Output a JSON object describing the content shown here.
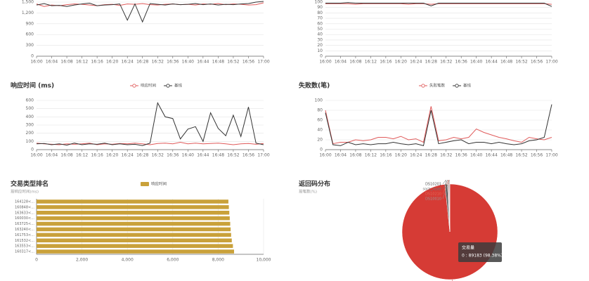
{
  "chart_data": [
    {
      "type": "line",
      "categories": [
        "16:00",
        null,
        "16:04",
        null,
        "16:08",
        null,
        "16:12",
        null,
        "16:16",
        null,
        "16:20",
        null,
        "16:24",
        null,
        "16:28",
        null,
        "16:32",
        null,
        "16:36",
        null,
        "16:40",
        null,
        "16:44",
        null,
        "16:48",
        null,
        "16:52",
        null,
        "16:56",
        null,
        "17:00"
      ],
      "ylim": [
        0,
        1500
      ],
      "yticks": [
        0,
        300,
        600,
        900,
        {
          "value": 1200,
          "label": "1,200"
        },
        {
          "value": 1500,
          "label": "1,500"
        }
      ],
      "grid": true,
      "series": [
        {
          "color": "#e05a5a",
          "values": [
            1450,
            1380,
            1420,
            1400,
            1430,
            1450,
            1440,
            1420,
            1400,
            1430,
            1440,
            1410,
            1450,
            1440,
            1460,
            1430,
            1420,
            1440,
            1450,
            1430,
            1440,
            1420,
            1450,
            1440,
            1460,
            1430,
            1450,
            1440,
            1420,
            1430,
            1480
          ]
        },
        {
          "color": "#333333",
          "values": [
            1420,
            1460,
            1400,
            1410,
            1380,
            1420,
            1450,
            1470,
            1400,
            1420,
            1430,
            1450,
            1000,
            1450,
            950,
            1460,
            1440,
            1420,
            1450,
            1430,
            1440,
            1460,
            1430,
            1450,
            1420,
            1440,
            1430,
            1450,
            1460,
            1500,
            1520
          ]
        }
      ]
    },
    {
      "type": "line",
      "categories": [
        "16:00",
        null,
        "16:04",
        null,
        "16:08",
        null,
        "16:12",
        null,
        "16:16",
        null,
        "16:20",
        null,
        "16:24",
        null,
        "16:28",
        null,
        "16:32",
        null,
        "16:36",
        null,
        "16:40",
        null,
        "16:44",
        null,
        "16:48",
        null,
        "16:52",
        null,
        "16:56",
        null,
        "17:00"
      ],
      "ylim": [
        0,
        100
      ],
      "yticks": [
        0,
        10,
        20,
        30,
        40,
        50,
        60,
        70,
        80,
        90,
        100
      ],
      "grid": true,
      "series": [
        {
          "color": "#e05a5a",
          "values": [
            97,
            97,
            97,
            97,
            96,
            97,
            97,
            97,
            97,
            97,
            97,
            96,
            97,
            97,
            96,
            97,
            97,
            97,
            97,
            97,
            97,
            97,
            97,
            97,
            97,
            97,
            97,
            97,
            97,
            97,
            96
          ]
        },
        {
          "color": "#333333",
          "values": [
            98,
            98,
            98,
            99,
            98,
            98,
            98,
            98,
            98,
            98,
            98,
            98,
            98,
            98,
            93,
            98,
            98,
            98,
            98,
            98,
            98,
            98,
            98,
            98,
            98,
            98,
            98,
            98,
            98,
            98,
            92
          ]
        }
      ]
    },
    {
      "type": "line",
      "title": "响应时间 (ms)",
      "categories": [
        "16:00",
        null,
        "16:04",
        null,
        "16:08",
        null,
        "16:12",
        null,
        "16:16",
        null,
        "16:20",
        null,
        "16:24",
        null,
        "16:28",
        null,
        "16:32",
        null,
        "16:36",
        null,
        "16:40",
        null,
        "16:44",
        null,
        "16:48",
        null,
        "16:52",
        null,
        "16:56",
        null,
        "17:00"
      ],
      "ylim": [
        0,
        600
      ],
      "yticks": [
        0,
        100,
        200,
        300,
        400,
        500,
        600
      ],
      "grid": true,
      "series": [
        {
          "name": "响应时间",
          "color": "#e05a5a",
          "values": [
            80,
            70,
            65,
            60,
            70,
            65,
            70,
            80,
            60,
            70,
            65,
            75,
            70,
            80,
            70,
            60,
            75,
            80,
            70,
            90,
            70,
            80,
            70,
            75,
            80,
            70,
            60,
            70,
            75,
            65,
            75
          ]
        },
        {
          "name": "基线",
          "color": "#333333",
          "values": [
            70,
            75,
            60,
            70,
            55,
            80,
            60,
            70,
            65,
            80,
            60,
            70,
            60,
            65,
            50,
            80,
            570,
            400,
            380,
            130,
            250,
            280,
            100,
            450,
            260,
            170,
            420,
            160,
            520,
            80,
            60
          ]
        }
      ]
    },
    {
      "type": "line",
      "title": "失败数(笔)",
      "categories": [
        "16:00",
        null,
        "16:04",
        null,
        "16:08",
        null,
        "16:12",
        null,
        "16:16",
        null,
        "16:20",
        null,
        "16:24",
        null,
        "16:28",
        null,
        "16:32",
        null,
        "16:36",
        null,
        "16:40",
        null,
        "16:44",
        null,
        "16:48",
        null,
        "16:52",
        null,
        "16:56",
        null,
        "17:00"
      ],
      "ylim": [
        0,
        100
      ],
      "yticks": [
        0,
        20,
        40,
        60,
        80,
        100
      ],
      "grid": true,
      "series": [
        {
          "name": "失败笔数",
          "color": "#e05a5a",
          "values": [
            80,
            12,
            15,
            15,
            20,
            18,
            20,
            25,
            25,
            22,
            27,
            20,
            22,
            15,
            88,
            18,
            20,
            25,
            22,
            25,
            42,
            35,
            30,
            25,
            22,
            18,
            15,
            25,
            22,
            20,
            25
          ]
        },
        {
          "name": "基线",
          "color": "#333333",
          "values": [
            75,
            10,
            8,
            15,
            10,
            12,
            10,
            12,
            12,
            15,
            12,
            10,
            12,
            8,
            80,
            12,
            15,
            18,
            20,
            12,
            15,
            15,
            12,
            15,
            12,
            10,
            12,
            18,
            20,
            25,
            92
          ]
        }
      ]
    },
    {
      "type": "bar",
      "orientation": "horizontal",
      "title": "交易类型排名",
      "subtitle": "按响应时间(ms)",
      "categories": [
        "164128<...",
        "160848<...",
        "163633<...",
        "160030<...",
        "163725<...",
        "163240<...",
        "161753<...",
        "161532<...",
        "163553<...",
        "160317<..."
      ],
      "xlim": [
        0,
        10000
      ],
      "xticks": [
        0,
        {
          "value": 2000,
          "label": "2,000"
        },
        {
          "value": 4000,
          "label": "4,000"
        },
        {
          "value": 6000,
          "label": "6,000"
        },
        {
          "value": 8000,
          "label": "8,000"
        },
        {
          "value": 10000,
          "label": "10,000"
        }
      ],
      "grid": true,
      "series": [
        {
          "name": "响应时间",
          "color": "#c9a13a",
          "values": [
            8450,
            8470,
            8490,
            8510,
            8530,
            8550,
            8570,
            8600,
            8650,
            8700
          ]
        }
      ]
    },
    {
      "type": "pie",
      "title": "返回码分布",
      "subtitle": "按笔数(%)",
      "categories": [
        "0",
        "DS10201",
        "sock_reset",
        "DS10210",
        "DS10010"
      ],
      "values": [
        98.38,
        0.82,
        0.3,
        0.25,
        0.25
      ],
      "colors": [
        "#d63b35",
        "#555555",
        "#777777",
        "#e06a5a",
        "#999999"
      ],
      "tooltip": {
        "title": "交易量",
        "text": "0 : 89183 (98.38%)"
      }
    }
  ]
}
